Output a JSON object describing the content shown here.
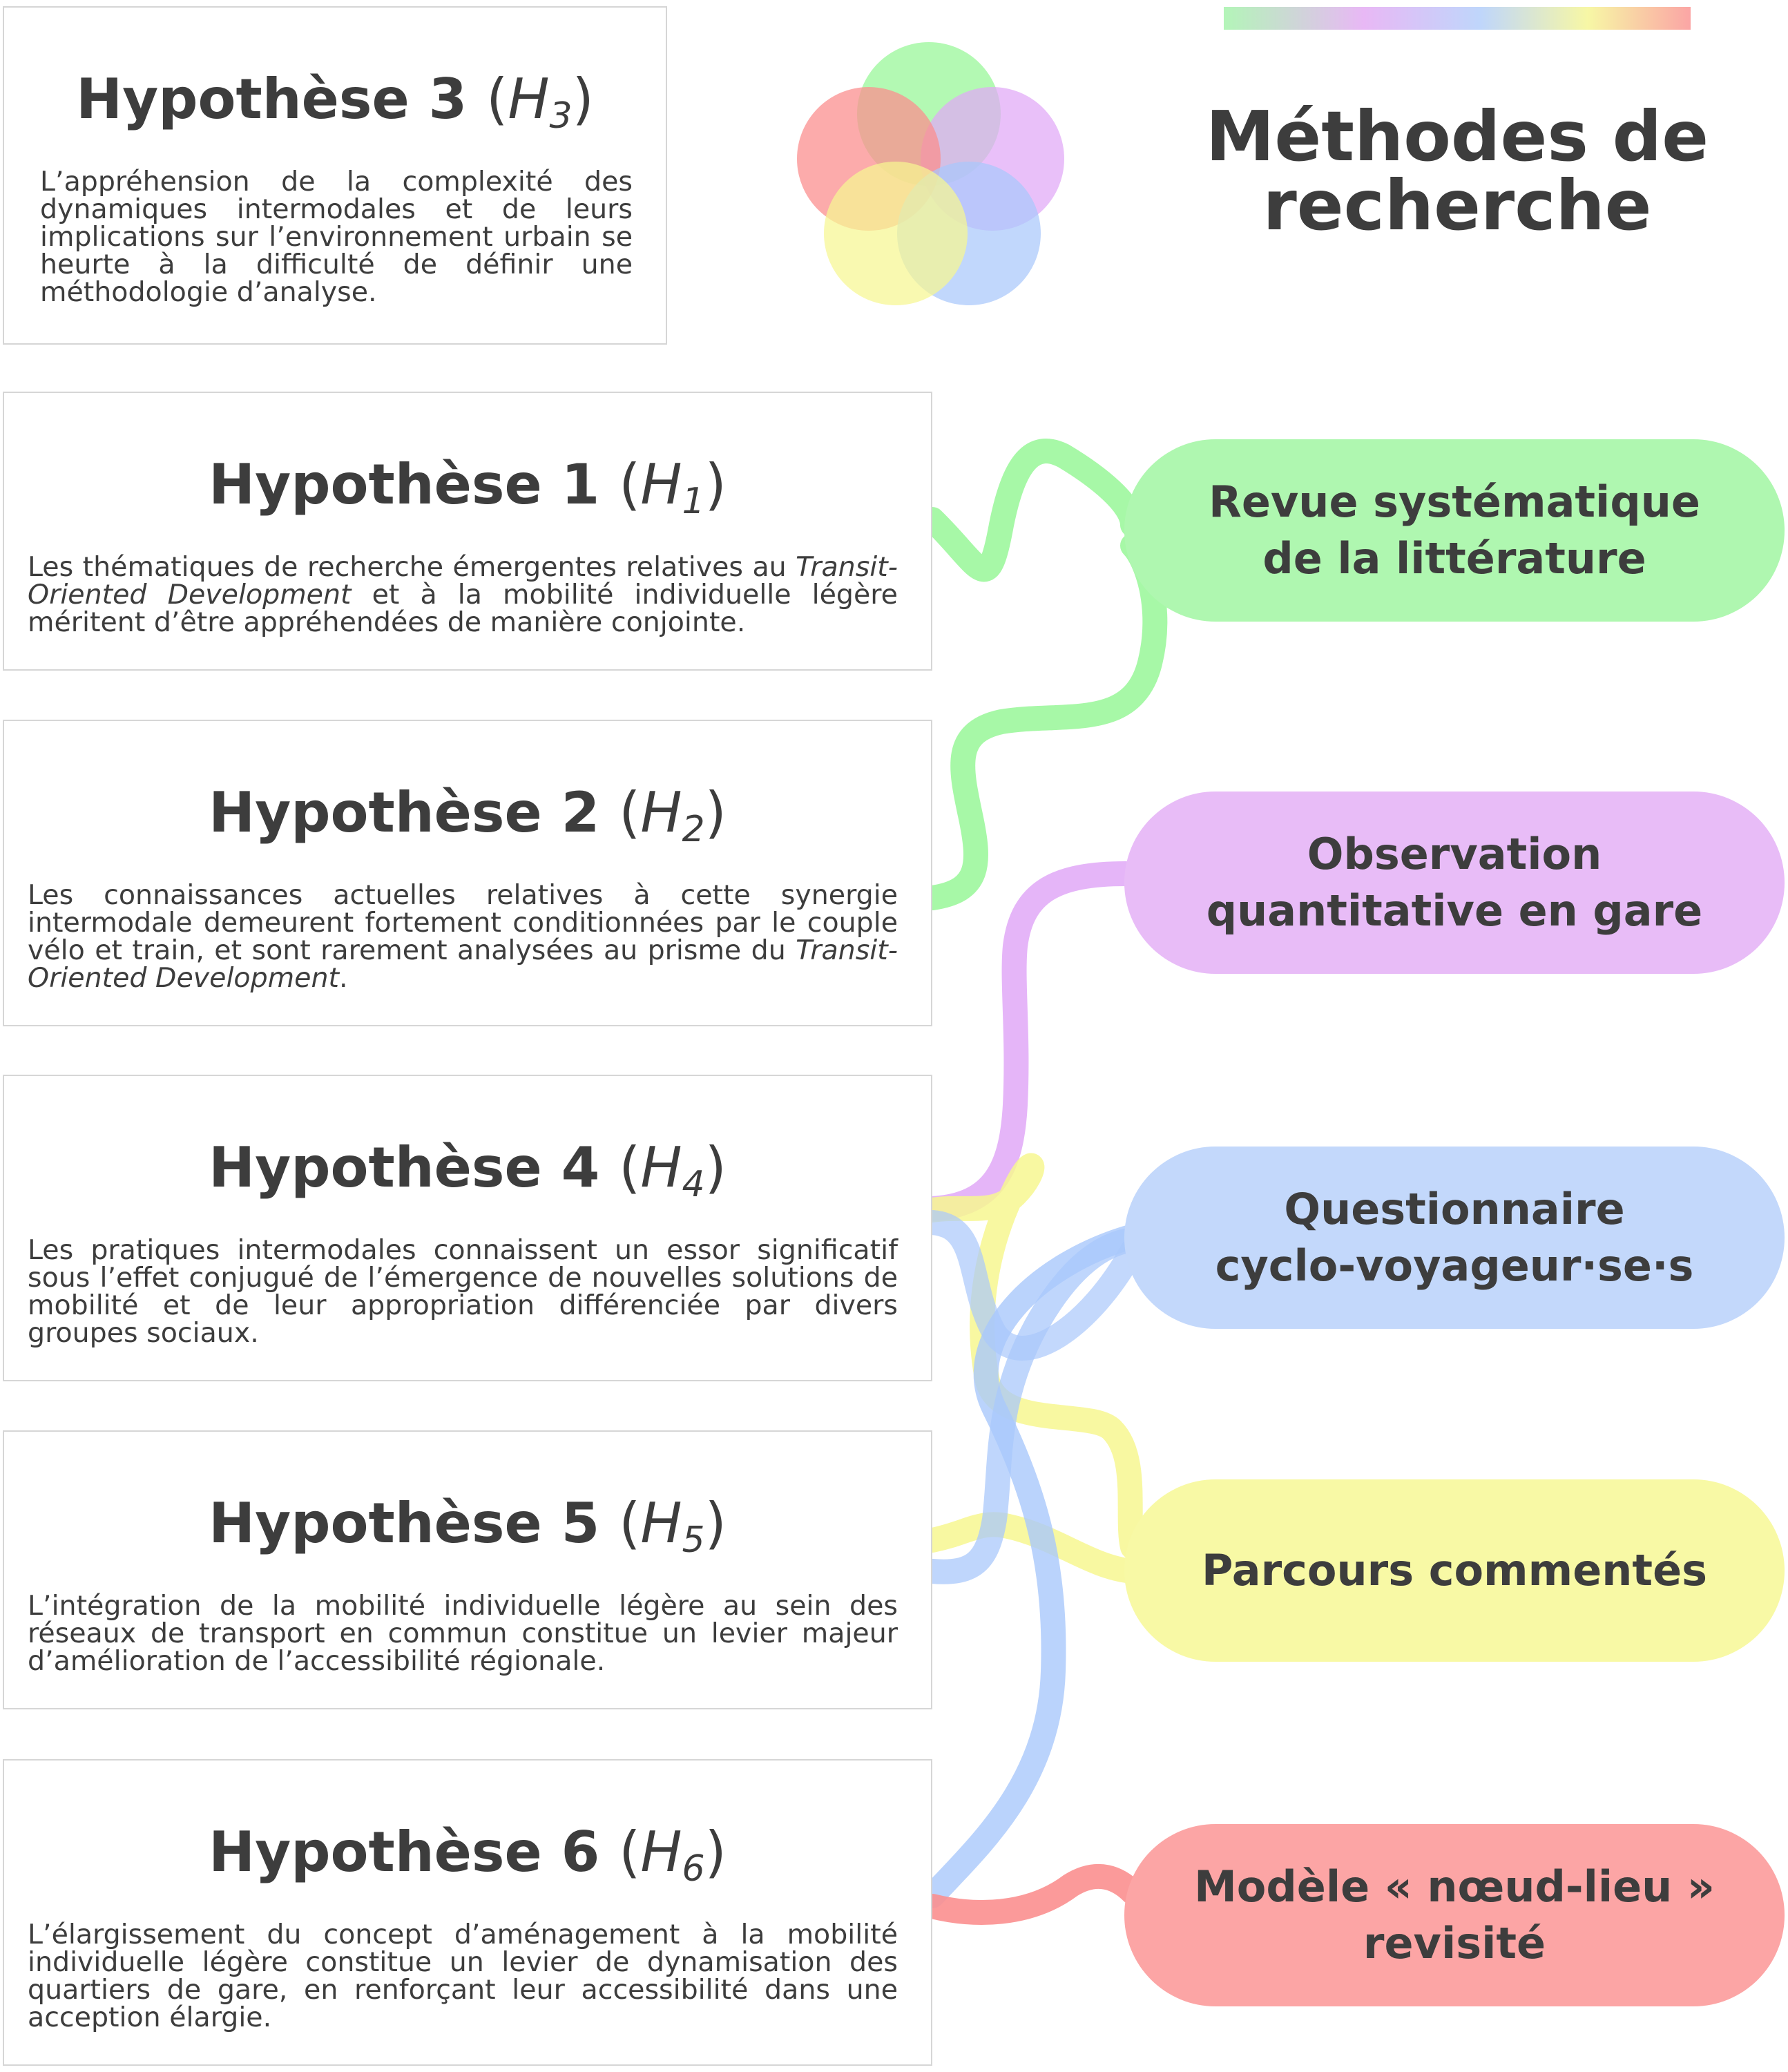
{
  "header": {
    "title_line1": "Méthodes de",
    "title_line2": "recherche",
    "colors": [
      "#9df79d",
      "#e1a8f7",
      "#a9c8fb",
      "#f7f791",
      "#fb8f8f"
    ]
  },
  "hypotheses": [
    {
      "label": "Hypothèse 3",
      "symbol": "H",
      "index": "3",
      "body": [
        {
          "text": "L’appréhension de la complexité des dynamiques intermodales et de leurs implications sur l’environnement urbain se heurte à la difficulté de définir une méthodologie d’analyse.",
          "italic": false
        }
      ]
    },
    {
      "label": "Hypothèse 1",
      "symbol": "H",
      "index": "1",
      "body": [
        {
          "text": "Les thématiques de recherche émergentes relatives au ",
          "italic": false
        },
        {
          "text": "Transit-Oriented Development",
          "italic": true
        },
        {
          "text": " et à la mobilité individuelle légère méritent d’être appréhendées de manière conjointe.",
          "italic": false
        }
      ]
    },
    {
      "label": "Hypothèse 2",
      "symbol": "H",
      "index": "2",
      "body": [
        {
          "text": "Les connaissances actuelles relatives à cette synergie intermodale demeurent fortement conditionnées par le couple vélo et train, et sont rarement analysées au prisme du ",
          "italic": false
        },
        {
          "text": "Transit-Oriented Development",
          "italic": true
        },
        {
          "text": ".",
          "italic": false
        }
      ]
    },
    {
      "label": "Hypothèse 4",
      "symbol": "H",
      "index": "4",
      "body": [
        {
          "text": "Les pratiques intermodales connaissent un essor significatif sous l’effet conjugué de l’émergence de nouvelles solutions de mobilité et de leur appropriation différenciée par divers groupes sociaux.",
          "italic": false
        }
      ]
    },
    {
      "label": "Hypothèse 5",
      "symbol": "H",
      "index": "5",
      "body": [
        {
          "text": "L’intégration de la mobilité individuelle légère au sein des réseaux de transport en commun constitue un levier majeur d’amélioration de l’accessibilité régionale.",
          "italic": false
        }
      ]
    },
    {
      "label": "Hypothèse 6",
      "symbol": "H",
      "index": "6",
      "body": [
        {
          "text": "L’élargissement du concept d’aménagement à la mobilité individuelle légère constitue un levier de dynamisation des quartiers de gare, en renforçant leur accessibilité dans une acception élargie.",
          "italic": false
        }
      ]
    }
  ],
  "methods": [
    {
      "line1": "Revue systématique",
      "line2": "de la littérature",
      "color": "#aff7b0"
    },
    {
      "line1": "Observation",
      "line2": "quantitative en gare",
      "color": "#e8bcf7"
    },
    {
      "line1": "Questionnaire",
      "line2": "cyclo-voyageur·se·s",
      "color": "#c3d8fb"
    },
    {
      "line1": "Parcours commentés",
      "line2": "",
      "color": "#f8f9a5"
    },
    {
      "line1": "Modèle « nœud-lieu »",
      "line2": "revisité",
      "color": "#fca5a5"
    }
  ]
}
